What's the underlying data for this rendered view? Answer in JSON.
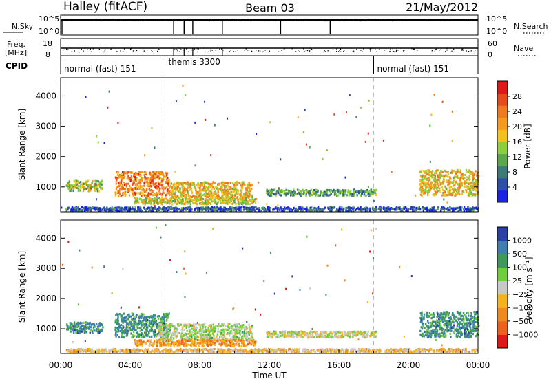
{
  "header": {
    "station": "Halley (fitACF)",
    "beam": "Beam 03",
    "date": "21/May/2012"
  },
  "chart_data": [
    {
      "type": "line",
      "panel": "nsky-nsearch",
      "left_label": "N.Sky",
      "right_label": "N.Search",
      "left_ticks": [
        "10^5",
        "10^0"
      ],
      "right_ticks": [
        "10^5",
        "10^0"
      ],
      "scan_boundaries_hours": [
        6.5,
        7.1,
        7.6,
        9.3,
        12.65,
        15.5
      ]
    },
    {
      "type": "line",
      "panel": "freq-nave",
      "left_label_lines": [
        "Freq.",
        "[MHz]"
      ],
      "right_label": "Nave",
      "left_ticks": [
        "18",
        "8"
      ],
      "right_ticks": [
        "60",
        "0"
      ],
      "left_ylim": [
        8,
        18
      ],
      "right_ylim": [
        0,
        60
      ]
    },
    {
      "type": "table",
      "panel": "cpid",
      "label": "CPID",
      "segments": [
        {
          "name": "normal (fast) 151",
          "start": 0,
          "end": 6
        },
        {
          "name": "themis 3300",
          "start": 6,
          "end": 18
        },
        {
          "name": "normal (fast) 151",
          "start": 18,
          "end": 24
        }
      ]
    },
    {
      "type": "heatmap",
      "panel": "power",
      "ylabel": "Slant Range [km]",
      "yticks": [
        "1000",
        "2000",
        "3000",
        "4000"
      ],
      "ylim": [
        180,
        4600
      ],
      "colorbar": {
        "label": "Power [dB]",
        "ticks": [
          "28",
          "24",
          "20",
          "16",
          "12",
          "8",
          "4"
        ],
        "colors": [
          "#1a22e8",
          "#2c4fa8",
          "#3d7a78",
          "#5aa84a",
          "#8ccf3a",
          "#f2c21a",
          "#f59a1c",
          "#f07a20",
          "#e84a1c",
          "#e01818"
        ]
      },
      "bands": [
        {
          "x": [
            0.3,
            2.4
          ],
          "y": [
            850,
            1200
          ],
          "level": 0.45
        },
        {
          "x": [
            3.1,
            6.2
          ],
          "y": [
            700,
            1500
          ],
          "level": 0.75
        },
        {
          "x": [
            6.2,
            11.0
          ],
          "y": [
            600,
            1150
          ],
          "level": 0.6
        },
        {
          "x": [
            11.8,
            18.1
          ],
          "y": [
            700,
            900
          ],
          "level": 0.3
        },
        {
          "x": [
            20.6,
            24.0
          ],
          "y": [
            700,
            1550
          ],
          "level": 0.6
        },
        {
          "x": [
            0.3,
            24.0
          ],
          "y": [
            200,
            320
          ],
          "level": 0.1
        },
        {
          "x": [
            4.2,
            11.2
          ],
          "y": [
            420,
            620
          ],
          "level": 0.5
        }
      ]
    },
    {
      "type": "heatmap",
      "panel": "velocity",
      "ylabel": "Slant Range [km]",
      "yticks": [
        "1000",
        "2000",
        "3000",
        "4000"
      ],
      "ylim": [
        180,
        4600
      ],
      "colorbar": {
        "label": "Velocity [m s⁻¹]",
        "ticks": [
          "1000",
          "500",
          "100",
          "25",
          "−25",
          "−100",
          "−500",
          "−1000"
        ],
        "colors": [
          "#2a3fa8",
          "#3f7fb0",
          "#3d9a5a",
          "#6fcf3a",
          "#c8c8c8",
          "#f5b21c",
          "#f08a1c",
          "#f0601c",
          "#e01818"
        ]
      },
      "bands": [
        {
          "x": [
            0.3,
            2.4
          ],
          "y": [
            850,
            1200
          ],
          "level": 0.8
        },
        {
          "x": [
            3.1,
            6.2
          ],
          "y": [
            700,
            1500
          ],
          "level": 0.8
        },
        {
          "x": [
            5.6,
            11.0
          ],
          "y": [
            600,
            1150
          ],
          "level": 0.55
        },
        {
          "x": [
            11.8,
            18.1
          ],
          "y": [
            700,
            900
          ],
          "level": 0.5
        },
        {
          "x": [
            20.6,
            24.0
          ],
          "y": [
            700,
            1550
          ],
          "level": 0.8
        },
        {
          "x": [
            0.3,
            24.0
          ],
          "y": [
            200,
            320
          ],
          "level": 0.4
        },
        {
          "x": [
            4.2,
            11.2
          ],
          "y": [
            420,
            620
          ],
          "level": 0.3
        }
      ]
    }
  ],
  "xaxis": {
    "label": "Time UT",
    "ticks": [
      "00:00",
      "04:00",
      "08:00",
      "12:00",
      "16:00",
      "20:00",
      "00:00"
    ],
    "xlim": [
      0,
      24
    ],
    "dashed_lines_hours": [
      6,
      18
    ]
  }
}
